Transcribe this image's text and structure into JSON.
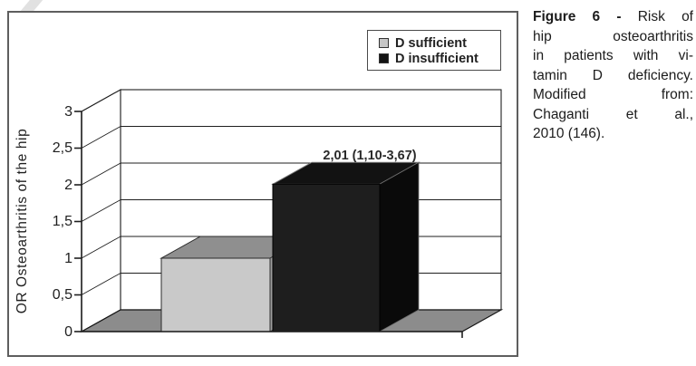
{
  "caption": {
    "lead_bold": "Figure 6 -",
    "lines": [
      "Risk of",
      "hip osteoarthritis",
      "in patients with vi-",
      "tamin D deficiency.",
      "Modified from:",
      "Chaganti et al.,",
      "2010 (146)."
    ]
  },
  "chart_data": {
    "type": "bar",
    "projection": "3d",
    "title": "",
    "ylabel": "OR Osteoarthritis of the hip",
    "ylim": [
      0,
      3
    ],
    "ytick_step": 0.5,
    "ytick_labels": [
      "3",
      "2,5",
      "2",
      "1,5",
      "1",
      "0,5",
      "0"
    ],
    "decimal_style": "comma",
    "categories": [
      "D sufficient",
      "D insufficient"
    ],
    "values": [
      1.0,
      2.01
    ],
    "annotation": {
      "text": "2,01 (1,10-3,67)",
      "applies_to": "D insufficient"
    },
    "grid": true,
    "legend": {
      "position": "top-right",
      "items": [
        {
          "label": "D sufficient",
          "color": "#c6c6c6"
        },
        {
          "label": "D insufficient",
          "color": "#141414"
        }
      ]
    },
    "colors": {
      "floor": "#8c8c8c",
      "wall": "#ffffff",
      "bars": [
        {
          "front": "#c9c9c9",
          "top": "#8f8f8f",
          "side": "#9e9e9e",
          "edge_front": "#2b2b2b",
          "edge_top": "#2b2b2b",
          "edge_side": "#2b2b2b"
        },
        {
          "front": "#1e1e1e",
          "top": "#121212",
          "side": "#0a0a0a",
          "edge_front": "#000000",
          "edge_top": "#7a7a7a",
          "edge_side": "#6f6f6f"
        }
      ]
    }
  }
}
